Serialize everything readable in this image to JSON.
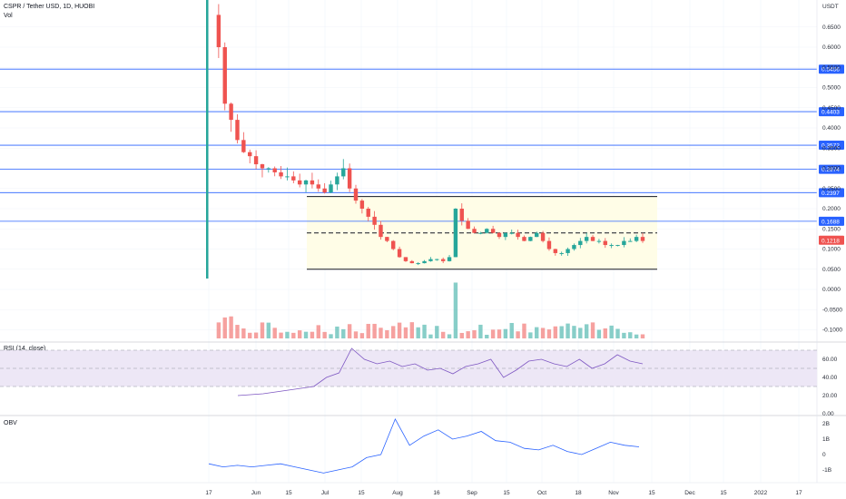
{
  "header": {
    "symbol": "CSPR / Tether USD, 1D, HUOBI",
    "volume_label": "Vol",
    "currency": "USDT",
    "rsi_label": "RSI (14, close)",
    "obv_label": "OBV"
  },
  "colors": {
    "up": "#26a69a",
    "down": "#ef5350",
    "hline": "#2962ff",
    "channel_fill": "#fffde7",
    "rsi_line": "#7e57c2",
    "rsi_band": "#ede7f6",
    "obv_line": "#2962ff",
    "price_tag": "#2962ff",
    "current_tag": "#ef5350"
  },
  "price_axis": [
    "0.6500",
    "0.6000",
    "0.5500",
    "0.5000",
    "0.4500",
    "0.4000",
    "0.3500",
    "0.3000",
    "0.2500",
    "0.2000",
    "0.1500",
    "0.1000",
    "0.0500",
    "0.0000",
    "-0.0500",
    "-0.1000"
  ],
  "price_levels": [
    "0.5456",
    "0.4403",
    "0.3572",
    "0.2974",
    "0.2397",
    "0.1688"
  ],
  "current_price": "0.1218",
  "rsi_axis": [
    "60.00",
    "40.00",
    "20.00",
    "0.00"
  ],
  "obv_axis": [
    "2B",
    "1B",
    "0",
    "-1B"
  ],
  "time_axis": [
    "17",
    "Jun",
    "15",
    "Jul",
    "15",
    "Aug",
    "16",
    "Sep",
    "15",
    "Oct",
    "18",
    "Nov",
    "15",
    "Dec",
    "15",
    "2022",
    "17"
  ],
  "chart_data": {
    "type": "candlestick",
    "title": "CSPR / Tether USD, 1D, HUOBI",
    "price_series": [
      0.68,
      0.6,
      0.46,
      0.42,
      0.37,
      0.34,
      0.33,
      0.31,
      0.3,
      0.3,
      0.29,
      0.28,
      0.28,
      0.27,
      0.26,
      0.27,
      0.26,
      0.25,
      0.24,
      0.26,
      0.28,
      0.3,
      0.25,
      0.22,
      0.2,
      0.18,
      0.16,
      0.13,
      0.12,
      0.1,
      0.08,
      0.07,
      0.065,
      0.065,
      0.07,
      0.075,
      0.075,
      0.07,
      0.08,
      0.2,
      0.17,
      0.15,
      0.14,
      0.14,
      0.15,
      0.14,
      0.13,
      0.14,
      0.14,
      0.13,
      0.12,
      0.13,
      0.14,
      0.12,
      0.1,
      0.09,
      0.09,
      0.1,
      0.11,
      0.12,
      0.13,
      0.12,
      0.12,
      0.11,
      0.11,
      0.11,
      0.12,
      0.12,
      0.13,
      0.12
    ],
    "channel": {
      "upper": 0.23,
      "middle": 0.14,
      "lower": 0.05
    },
    "rsi_series": [
      20,
      21,
      22,
      24,
      26,
      28,
      30,
      40,
      45,
      72,
      60,
      55,
      58,
      52,
      55,
      48,
      50,
      44,
      52,
      55,
      60,
      40,
      48,
      58,
      60,
      55,
      52,
      60,
      50,
      55,
      65,
      58,
      55
    ],
    "obv_series": [
      -0.6,
      -0.8,
      -0.7,
      -0.8,
      -0.7,
      -0.6,
      -0.8,
      -1.0,
      -1.2,
      -1.0,
      -0.8,
      -0.2,
      0,
      2.3,
      0.6,
      1.2,
      1.6,
      1.0,
      1.2,
      1.5,
      0.9,
      0.8,
      0.4,
      0.3,
      0.6,
      0.2,
      0.0,
      0.4,
      0.8,
      0.6,
      0.5
    ]
  }
}
